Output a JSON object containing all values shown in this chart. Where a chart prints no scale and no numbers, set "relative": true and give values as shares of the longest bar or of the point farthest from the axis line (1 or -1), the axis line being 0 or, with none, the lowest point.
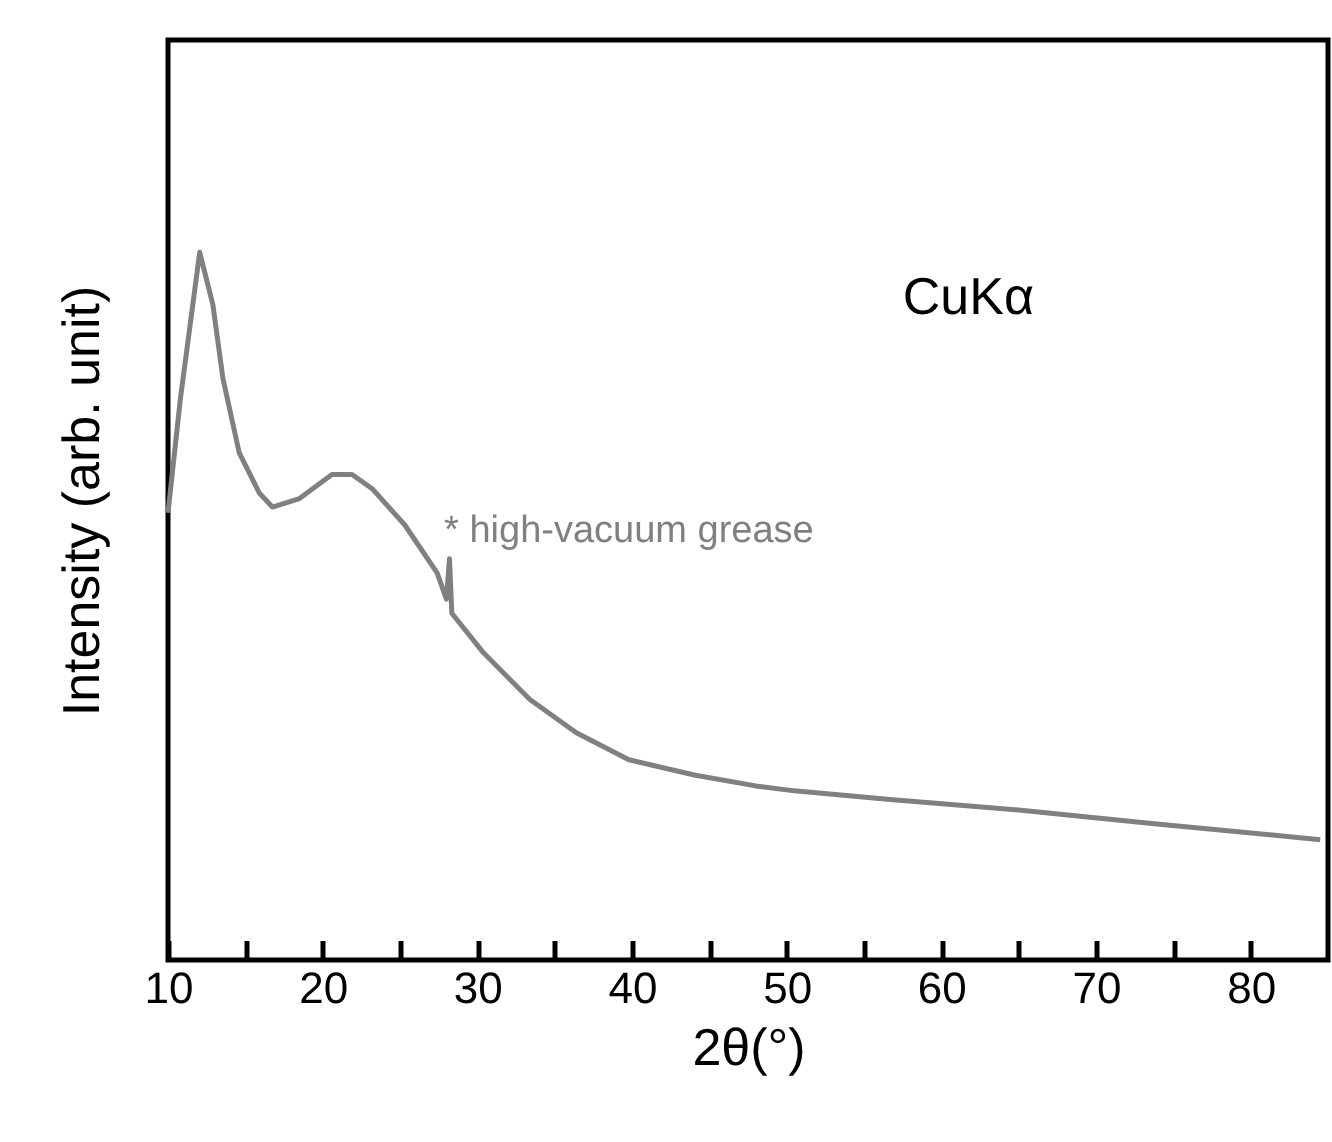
{
  "chart_data": {
    "type": "line",
    "xlabel": "2θ(°)",
    "ylabel": "Intensity (arb. unit)",
    "relative": true,
    "xlim": [
      10,
      85
    ],
    "xticks": [
      10,
      {
        "value": 15,
        "label": null
      },
      20,
      {
        "value": 25,
        "label": null
      },
      30,
      {
        "value": 35,
        "label": null
      },
      40,
      {
        "value": 45,
        "label": null
      },
      50,
      {
        "value": 55,
        "label": null
      },
      60,
      {
        "value": 65,
        "label": null
      },
      70,
      {
        "value": 75,
        "label": null
      },
      80
    ],
    "annotations": [
      "CuKα",
      "* high-vacuum grease"
    ],
    "series": [
      {
        "color": "#808080",
        "x": [
          10,
          10.8,
          12.05,
          12.9,
          13.55,
          14.6,
          15.9,
          16.75,
          18.5,
          20.6,
          21.9,
          23.2,
          25.3,
          27.4,
          28.0,
          28.2,
          28.35,
          30.4,
          33.4,
          36.4,
          39.8,
          44.1,
          48,
          50.5,
          56.5,
          65,
          73.6,
          84.5
        ],
        "values": [
          0.632,
          0.793,
          1.0,
          0.926,
          0.822,
          0.717,
          0.66,
          0.64,
          0.652,
          0.686,
          0.686,
          0.666,
          0.615,
          0.547,
          0.51,
          0.567,
          0.49,
          0.434,
          0.368,
          0.321,
          0.283,
          0.261,
          0.246,
          0.239,
          0.227,
          0.212,
          0.193,
          0.17
        ]
      }
    ]
  }
}
